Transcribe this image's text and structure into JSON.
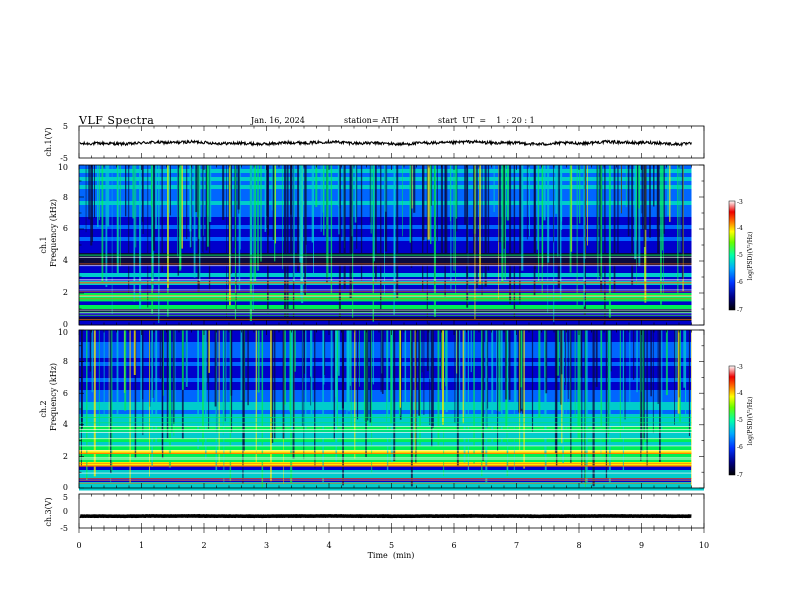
{
  "header": {
    "title": "VLF  Spectra",
    "date": "Jan. 16, 2024",
    "station": "station= ATH",
    "start_ut": "start  UT  =    1  : 20 : 1"
  },
  "chart_data": [
    {
      "type": "line",
      "panel": "ch1-waveform",
      "ylabel": "ch.1(V)",
      "ylim": [
        -5,
        5
      ],
      "yticks": [
        "5",
        "-5"
      ],
      "xlim": [
        0,
        10
      ],
      "x_end": 9.8,
      "baseline": -0.3
    },
    {
      "type": "heatmap",
      "panel": "ch1-spectrogram",
      "ylabel_channel": "ch.1",
      "ylabel": "Frequency  (kHz)",
      "ylim": [
        0,
        10
      ],
      "yticks": [
        "0",
        "2",
        "4",
        "6",
        "8",
        "10"
      ],
      "xlim": [
        0,
        10
      ],
      "colorbar": {
        "label": "log(PSD)(V²/Hz)",
        "range": [
          -7,
          -3
        ],
        "ticks": [
          "-3",
          "-4",
          "-5",
          "-6",
          "-7"
        ]
      }
    },
    {
      "type": "heatmap",
      "panel": "ch2-spectrogram",
      "ylabel_channel": "ch.2",
      "ylabel": "Frequency  (kHz)",
      "ylim": [
        0,
        10
      ],
      "yticks": [
        "0",
        "2",
        "4",
        "6",
        "8",
        "10"
      ],
      "xlim": [
        0,
        10
      ],
      "colorbar": {
        "label": "log(PSD)(V²/Hz)",
        "range": [
          -7,
          -3
        ],
        "ticks": [
          "-3",
          "-4",
          "-5",
          "-6",
          "-7"
        ]
      }
    },
    {
      "type": "line",
      "panel": "ch3-waveform",
      "ylabel": "ch.3(V)",
      "ylim": [
        -5,
        5
      ],
      "yticks": [
        "5",
        "0",
        "-5"
      ],
      "xlim": [
        0,
        10
      ],
      "x_end": 9.8,
      "baseline": -1.5
    }
  ],
  "xaxis": {
    "label": "Time  (min)",
    "ticks": [
      "0",
      "1",
      "2",
      "3",
      "4",
      "5",
      "6",
      "7",
      "8",
      "9",
      "10"
    ]
  },
  "colors": {
    "scale": [
      "#0a0a40",
      "#0000cc",
      "#0066ff",
      "#00cccc",
      "#00ee55",
      "#aaee00",
      "#ffee00",
      "#ff6600",
      "#ee0000",
      "#ff6666",
      "#ffffff"
    ]
  }
}
